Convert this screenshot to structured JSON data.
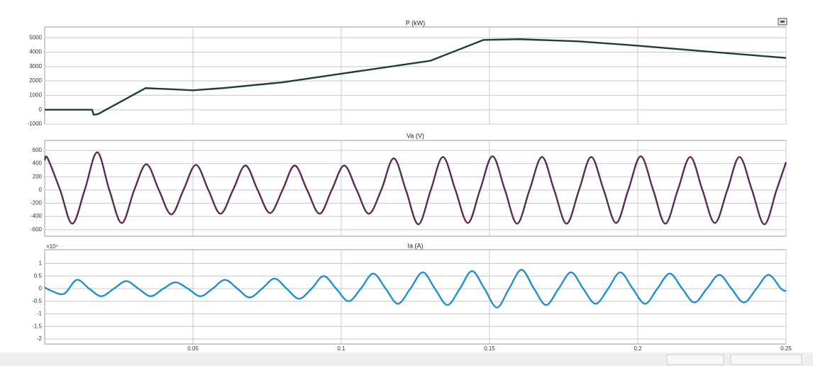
{
  "chart_data": [
    {
      "type": "line",
      "title": "P (kW)",
      "color": "#1e3d38",
      "smooth": false,
      "x": [
        0,
        0.016,
        0.0165,
        0.018,
        0.034,
        0.04,
        0.05,
        0.06,
        0.08,
        0.1,
        0.13,
        0.148,
        0.16,
        0.18,
        0.2,
        0.22,
        0.25
      ],
      "values": [
        0,
        0,
        -350,
        -300,
        1500,
        1450,
        1350,
        1500,
        1900,
        2500,
        3400,
        4850,
        4900,
        4750,
        4450,
        4100,
        3600
      ],
      "xlim": [
        0,
        0.25
      ],
      "ylim": [
        -1000,
        5750
      ],
      "yticks": [
        5000,
        4000,
        3000,
        2000,
        1000,
        0,
        -1000
      ],
      "grid": true
    },
    {
      "type": "line",
      "title": "Va (V)",
      "color": "#5a2a55",
      "smooth": true,
      "x": [
        0,
        0.001,
        0.0052,
        0.0093,
        0.0135,
        0.0177,
        0.0218,
        0.026,
        0.0302,
        0.0343,
        0.0385,
        0.0427,
        0.0468,
        0.051,
        0.0552,
        0.0593,
        0.0635,
        0.0677,
        0.0718,
        0.076,
        0.0802,
        0.0843,
        0.0885,
        0.0927,
        0.0968,
        0.101,
        0.1052,
        0.1093,
        0.1135,
        0.1177,
        0.1218,
        0.126,
        0.1302,
        0.1343,
        0.1385,
        0.1427,
        0.1468,
        0.151,
        0.1552,
        0.1593,
        0.1635,
        0.1677,
        0.1718,
        0.176,
        0.1802,
        0.1843,
        0.1885,
        0.1927,
        0.1968,
        0.201,
        0.2052,
        0.2093,
        0.2135,
        0.2177,
        0.2218,
        0.226,
        0.2302,
        0.2343,
        0.2385,
        0.2427,
        0.2468,
        0.25
      ],
      "values": [
        450,
        480,
        0,
        -510,
        0,
        570,
        0,
        -500,
        0,
        390,
        0,
        -370,
        0,
        380,
        0,
        -360,
        0,
        370,
        0,
        -350,
        0,
        370,
        0,
        -360,
        0,
        370,
        0,
        -360,
        0,
        480,
        0,
        -520,
        0,
        500,
        0,
        -500,
        0,
        510,
        0,
        -510,
        0,
        500,
        0,
        -510,
        0,
        500,
        0,
        -500,
        0,
        510,
        0,
        -510,
        0,
        500,
        0,
        -500,
        0,
        500,
        0,
        -520,
        0,
        420
      ],
      "xlim": [
        0,
        0.25
      ],
      "ylim": [
        -700,
        750
      ],
      "yticks": [
        600,
        400,
        200,
        0,
        -200,
        -400,
        -600
      ],
      "grid": true
    },
    {
      "type": "line",
      "title": "Ia (A)",
      "y_exponent": "×10⁴",
      "color": "#1f8fd0",
      "smooth": true,
      "x": [
        0,
        0.0025,
        0.0066,
        0.0108,
        0.015,
        0.0191,
        0.0233,
        0.0275,
        0.0316,
        0.0358,
        0.04,
        0.0441,
        0.0483,
        0.0525,
        0.0566,
        0.0608,
        0.065,
        0.0691,
        0.0733,
        0.0775,
        0.0816,
        0.0858,
        0.09,
        0.0941,
        0.0983,
        0.1025,
        0.1066,
        0.1108,
        0.115,
        0.1191,
        0.1233,
        0.1275,
        0.1316,
        0.1358,
        0.14,
        0.1441,
        0.1483,
        0.1525,
        0.1566,
        0.1608,
        0.165,
        0.1691,
        0.1733,
        0.1775,
        0.1816,
        0.1858,
        0.19,
        0.1941,
        0.1983,
        0.2025,
        0.2066,
        0.2108,
        0.215,
        0.2191,
        0.2233,
        0.2275,
        0.2316,
        0.2358,
        0.24,
        0.2441,
        0.2483,
        0.25
      ],
      "values": [
        0.05,
        -0.1,
        -0.2,
        0.35,
        0,
        -0.3,
        0,
        0.3,
        0,
        -0.3,
        0,
        0.25,
        0,
        -0.3,
        0,
        0.35,
        0,
        -0.35,
        0,
        0.4,
        0,
        -0.4,
        0,
        0.5,
        0,
        -0.5,
        0,
        0.6,
        0,
        -0.6,
        0,
        0.65,
        0,
        -0.65,
        0,
        0.7,
        0,
        -0.75,
        0,
        0.75,
        0,
        -0.65,
        0,
        0.65,
        0,
        -0.6,
        0,
        0.65,
        0,
        -0.6,
        0,
        0.6,
        0,
        -0.55,
        0,
        0.55,
        0,
        -0.55,
        0,
        0.55,
        0,
        -0.1
      ],
      "xlim": [
        0,
        0.25
      ],
      "xticks": [
        0.05,
        0.1,
        0.15,
        0.2,
        0.25
      ],
      "ylim": [
        -2.2,
        1.55
      ],
      "yticks": [
        1,
        0.5,
        0,
        -0.5,
        -1,
        -1.5,
        -2
      ],
      "grid": true
    }
  ]
}
